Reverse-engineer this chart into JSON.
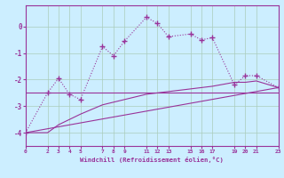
{
  "xlabel": "Windchill (Refroidissement éolien,°C)",
  "background_color": "#cceeff",
  "grid_color": "#aaccbb",
  "line_color": "#993399",
  "xlim": [
    0,
    23
  ],
  "ylim": [
    -4.5,
    0.8
  ],
  "yticks": [
    -4,
    -3,
    -2,
    -1,
    0
  ],
  "xticks": [
    0,
    2,
    3,
    4,
    5,
    7,
    8,
    9,
    11,
    12,
    13,
    15,
    16,
    17,
    19,
    20,
    21,
    23
  ],
  "series1_x": [
    0,
    2,
    3,
    4,
    5,
    7,
    8,
    9,
    11,
    12,
    13,
    15,
    16,
    17,
    19,
    20,
    21,
    23
  ],
  "series1_y": [
    -4.0,
    -2.5,
    -1.95,
    -2.55,
    -2.75,
    -0.75,
    -1.1,
    -0.55,
    0.35,
    0.12,
    -0.38,
    -0.28,
    -0.5,
    -0.42,
    -2.2,
    -1.85,
    -1.85,
    -2.3
  ],
  "series2_x": [
    0,
    23
  ],
  "series2_y": [
    -4.0,
    -2.3
  ],
  "series3_x": [
    0,
    2,
    23
  ],
  "series3_y": [
    -2.5,
    -2.5,
    -2.5
  ],
  "series4_x": [
    0,
    2,
    3,
    4,
    5,
    7,
    8,
    9,
    11,
    12,
    13,
    15,
    16,
    17,
    19,
    20,
    21,
    23
  ],
  "series4_y": [
    -4.0,
    -4.0,
    -3.7,
    -3.5,
    -3.3,
    -2.95,
    -2.85,
    -2.75,
    -2.55,
    -2.5,
    -2.45,
    -2.35,
    -2.3,
    -2.25,
    -2.1,
    -2.1,
    -2.05,
    -2.3
  ]
}
